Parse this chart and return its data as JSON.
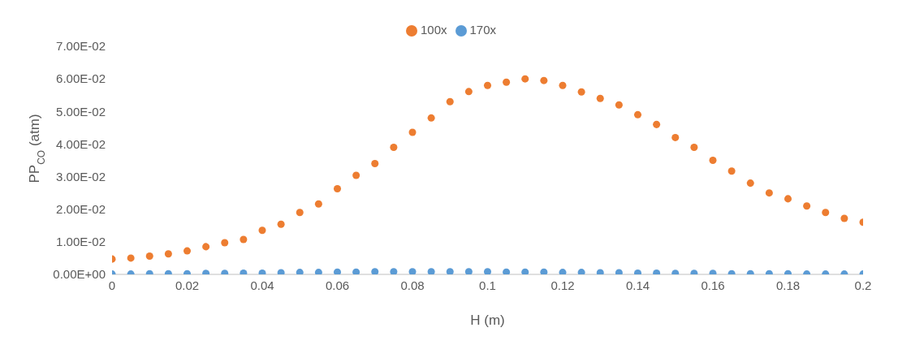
{
  "chart_data": {
    "type": "scatter",
    "xlabel": "H (m)",
    "ylabel": "PP$_{CO}$ (atm)",
    "x": [
      0,
      0.005,
      0.01,
      0.015,
      0.02,
      0.025,
      0.03,
      0.035,
      0.04,
      0.045,
      0.05,
      0.055,
      0.06,
      0.065,
      0.07,
      0.075,
      0.08,
      0.085,
      0.09,
      0.095,
      0.1,
      0.105,
      0.11,
      0.115,
      0.12,
      0.125,
      0.13,
      0.135,
      0.14,
      0.145,
      0.15,
      0.155,
      0.16,
      0.165,
      0.17,
      0.175,
      0.18,
      0.185,
      0.19,
      0.195,
      0.2
    ],
    "series": [
      {
        "name": "170x",
        "color": "#5b9bd5",
        "values": [
          0.0001,
          0.0001,
          0.0002,
          0.0002,
          0.0002,
          0.0003,
          0.0003,
          0.0004,
          0.0004,
          0.0005,
          0.0006,
          0.0006,
          0.0007,
          0.0007,
          0.0008,
          0.0008,
          0.0008,
          0.0008,
          0.0008,
          0.0008,
          0.0008,
          0.0007,
          0.0007,
          0.0007,
          0.0006,
          0.0006,
          0.0005,
          0.0005,
          0.0004,
          0.0004,
          0.0003,
          0.0003,
          0.0003,
          0.0002,
          0.0002,
          0.0002,
          0.0002,
          0.0001,
          0.0001,
          0.0001,
          0.0001
        ]
      },
      {
        "name": "100x",
        "color": "#ed7d31",
        "values": [
          0.0047,
          0.005,
          0.0056,
          0.0063,
          0.0072,
          0.0085,
          0.0097,
          0.0107,
          0.0135,
          0.0154,
          0.019,
          0.0216,
          0.0263,
          0.0304,
          0.034,
          0.039,
          0.0436,
          0.048,
          0.053,
          0.0561,
          0.058,
          0.059,
          0.06,
          0.0595,
          0.058,
          0.056,
          0.054,
          0.052,
          0.049,
          0.046,
          0.042,
          0.039,
          0.035,
          0.0317,
          0.028,
          0.025,
          0.0232,
          0.021,
          0.019,
          0.0172,
          0.016
        ]
      }
    ],
    "xlim": [
      0,
      0.2
    ],
    "xticks": [
      0,
      0.02,
      0.04,
      0.06,
      0.08,
      0.1,
      0.12,
      0.14,
      0.16,
      0.18,
      0.2
    ],
    "ylim": [
      0,
      0.07
    ],
    "yticks": [
      {
        "value": 0,
        "label": "0.00E+00"
      },
      {
        "value": 0.01,
        "label": "1.00E-02"
      },
      {
        "value": 0.02,
        "label": "2.00E-02"
      },
      {
        "value": 0.03,
        "label": "3.00E-02"
      },
      {
        "value": 0.04,
        "label": "4.00E-02"
      },
      {
        "value": 0.05,
        "label": "5.00E-02"
      },
      {
        "value": 0.06,
        "label": "6.00E-02"
      },
      {
        "value": 0.07,
        "label": "7.00E-02"
      }
    ],
    "legend": "top",
    "marker": "circle"
  }
}
